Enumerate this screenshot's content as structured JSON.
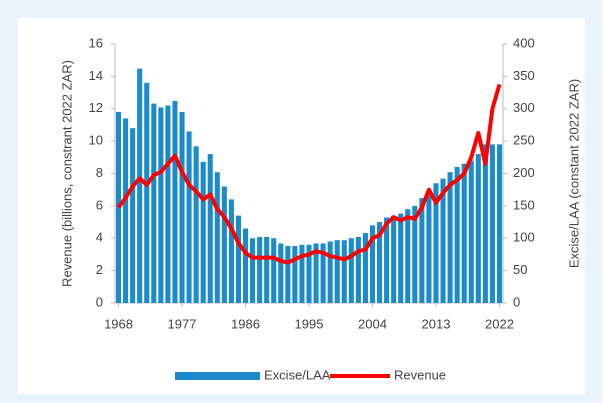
{
  "chart_data": {
    "type": "bar-line",
    "y_label": "Revenue (billions, constrant 2022 ZAR)",
    "y2_label": "Excise/LAA (constant 2022 ZAR)",
    "x": [
      1968,
      1969,
      1970,
      1971,
      1972,
      1973,
      1974,
      1975,
      1976,
      1977,
      1978,
      1979,
      1980,
      1981,
      1982,
      1983,
      1984,
      1985,
      1986,
      1987,
      1988,
      1989,
      1990,
      1991,
      1992,
      1993,
      1994,
      1995,
      1996,
      1997,
      1998,
      1999,
      2000,
      2001,
      2002,
      2003,
      2004,
      2005,
      2006,
      2007,
      2008,
      2009,
      2010,
      2011,
      2012,
      2013,
      2014,
      2015,
      2016,
      2017,
      2018,
      2019,
      2020,
      2021,
      2022
    ],
    "xlim": [
      1967.5,
      2022.5
    ],
    "xticks": [
      1968,
      1977,
      1986,
      1995,
      2004,
      2013,
      2022
    ],
    "ylim": [
      0,
      16
    ],
    "yticks": [
      0,
      2,
      4,
      6,
      8,
      10,
      12,
      14,
      16
    ],
    "y2lim": [
      0,
      400
    ],
    "y2ticks": [
      0,
      50,
      100,
      150,
      200,
      250,
      300,
      350,
      400
    ],
    "legend": "bottom",
    "series": [
      {
        "name": "Excise/LAA",
        "type": "bar",
        "axis": "y2",
        "color": "#1c8bcc",
        "values": [
          295,
          285,
          270,
          362,
          340,
          308,
          302,
          305,
          312,
          295,
          265,
          242,
          218,
          230,
          202,
          180,
          160,
          135,
          115,
          100,
          102,
          102,
          100,
          92,
          88,
          88,
          90,
          90,
          92,
          92,
          95,
          97,
          97,
          100,
          102,
          108,
          120,
          125,
          132,
          135,
          138,
          145,
          150,
          162,
          175,
          185,
          192,
          202,
          210,
          215,
          220,
          230,
          245,
          245,
          245
        ]
      },
      {
        "name": "Revenue",
        "type": "line",
        "axis": "y",
        "color": "#ff0000",
        "values": [
          5.9,
          6.5,
          7.2,
          7.7,
          7.3,
          7.9,
          8.1,
          8.6,
          9.1,
          8.1,
          7.3,
          6.9,
          6.4,
          6.7,
          5.8,
          5.3,
          4.6,
          3.7,
          3.1,
          2.8,
          2.8,
          2.8,
          2.8,
          2.6,
          2.5,
          2.7,
          2.9,
          3.0,
          3.2,
          3.1,
          2.9,
          2.8,
          2.7,
          2.9,
          3.2,
          3.3,
          4.0,
          4.2,
          4.9,
          5.3,
          5.1,
          5.3,
          5.2,
          5.9,
          7.0,
          6.2,
          6.8,
          7.3,
          7.6,
          8.0,
          9.0,
          10.5,
          8.6,
          12.0,
          13.5
        ]
      }
    ]
  }
}
